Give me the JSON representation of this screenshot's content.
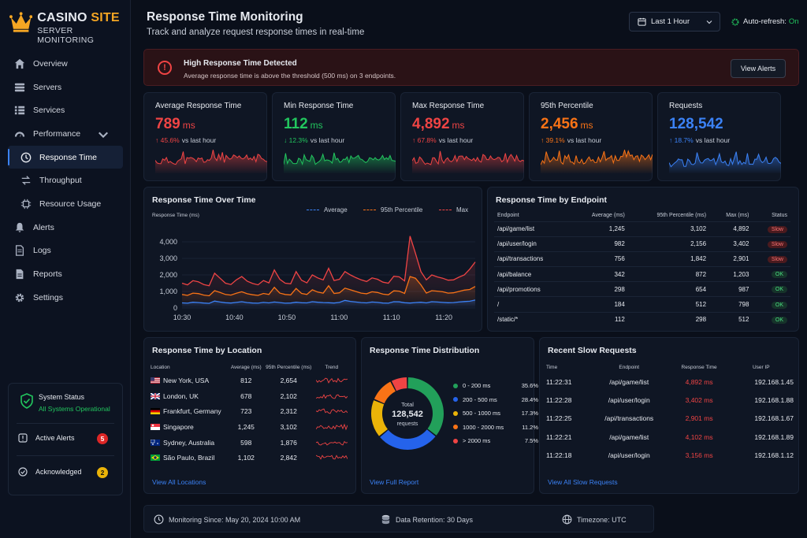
{
  "brand": {
    "name_a": "CASINO",
    "name_b": "SITE",
    "subtitle": "SERVER MONITORING"
  },
  "nav": [
    {
      "label": "Overview",
      "icon": "home-icon"
    },
    {
      "label": "Servers",
      "icon": "server-icon"
    },
    {
      "label": "Services",
      "icon": "list-icon"
    },
    {
      "label": "Performance",
      "icon": "speedometer-icon"
    },
    {
      "label": "Response Time",
      "icon": "clock-icon"
    },
    {
      "label": "Throughput",
      "icon": "swap-icon"
    },
    {
      "label": "Resource Usage",
      "icon": "cpu-icon"
    },
    {
      "label": "Alerts",
      "icon": "bell-icon"
    },
    {
      "label": "Logs",
      "icon": "file-icon"
    },
    {
      "label": "Reports",
      "icon": "report-icon"
    },
    {
      "label": "Settings",
      "icon": "gear-icon"
    }
  ],
  "system_status": {
    "title": "System Status",
    "state": "All Systems Operational",
    "active_alerts_label": "Active Alerts",
    "active_alerts": "5",
    "ack_label": "Acknowledged",
    "ack": "2"
  },
  "header": {
    "title": "Response Time Monitoring",
    "subtitle": "Track and analyze request response times in real-time",
    "range": "Last 1 Hour",
    "auto_label": "Auto-refresh:",
    "auto_value": "On"
  },
  "alert": {
    "title": "High Response Time Detected",
    "message": "Average response time is above the threshold (500 ms) on 3 endpoints.",
    "button": "View Alerts"
  },
  "stats": [
    {
      "label": "Average Response Time",
      "value": "789",
      "unit": "ms",
      "change": "↑ 45.6%",
      "note": "vs last hour",
      "color": "#ef4444"
    },
    {
      "label": "Min Response Time",
      "value": "112",
      "unit": "ms",
      "change": "↓ 12.3%",
      "note": "vs last hour",
      "color": "#22c55e"
    },
    {
      "label": "Max Response Time",
      "value": "4,892",
      "unit": "ms",
      "change": "↑ 67.8%",
      "note": "vs last hour",
      "color": "#ef4444"
    },
    {
      "label": "95th Percentile",
      "value": "2,456",
      "unit": "ms",
      "change": "↑ 39.1%",
      "note": "vs last hour",
      "color": "#f97316"
    },
    {
      "label": "Requests",
      "value": "128,542",
      "unit": "",
      "change": "↑ 18.7%",
      "note": "vs last hour",
      "color": "#3b82f6"
    }
  ],
  "chart_data": {
    "type": "line",
    "title": "Response Time Over Time",
    "ylabel": "Response Time (ms)",
    "ylim": [
      0,
      5000
    ],
    "yticks": [
      "0",
      "1,000",
      "2,000",
      "3,000",
      "4,000"
    ],
    "xticks": [
      "10:30",
      "10:40",
      "10:50",
      "11:00",
      "11:10",
      "11:20"
    ],
    "legend": "top-right",
    "series": [
      {
        "name": "Average",
        "color": "#3b82f6",
        "values": [
          310,
          290,
          350,
          330,
          300,
          280,
          420,
          360,
          320,
          300,
          340,
          380,
          330,
          300,
          290,
          340,
          310,
          360,
          330,
          290,
          300,
          350,
          320,
          310,
          380,
          350,
          330,
          320,
          300,
          340,
          460,
          400,
          360,
          330,
          310,
          360,
          340,
          300,
          290,
          380,
          370,
          320,
          300,
          330,
          350,
          310,
          380,
          360,
          340,
          320,
          330,
          360,
          390,
          410,
          480
        ]
      },
      {
        "name": "95th Percentile",
        "color": "#f97316",
        "values": [
          820,
          760,
          900,
          870,
          780,
          740,
          1050,
          940,
          820,
          780,
          890,
          980,
          860,
          800,
          760,
          880,
          820,
          1250,
          900,
          820,
          790,
          1180,
          880,
          820,
          1100,
          960,
          900,
          1350,
          880,
          920,
          1200,
          1100,
          1000,
          900,
          860,
          980,
          940,
          840,
          800,
          1040,
          1020,
          880,
          1900,
          1800,
          1400,
          900,
          1050,
          1020,
          980,
          900,
          920,
          1000,
          1080,
          1120,
          1300
        ]
      },
      {
        "name": "Max",
        "color": "#ef4444",
        "values": [
          1500,
          1400,
          1650,
          1580,
          1420,
          1350,
          2100,
          1800,
          1500,
          1420,
          1700,
          1900,
          1620,
          1480,
          1400,
          1660,
          1520,
          2300,
          1740,
          1500,
          1460,
          2200,
          1680,
          1520,
          2000,
          1820,
          1700,
          2400,
          1660,
          1740,
          2200,
          2000,
          1840,
          1700,
          1600,
          1820,
          1740,
          1560,
          1500,
          1920,
          1880,
          1640,
          4350,
          3300,
          2200,
          1700,
          2000,
          1880,
          1800,
          1680,
          1700,
          1860,
          2000,
          2350,
          2780
        ]
      }
    ]
  },
  "endpoints": {
    "title": "Response Time by Endpoint",
    "headers": [
      "Endpoint",
      "Average (ms)",
      "95th Percentile (ms)",
      "Max (ms)",
      "Status"
    ],
    "rows": [
      [
        "/api/game/list",
        "1,245",
        "3,102",
        "4,892",
        "Slow"
      ],
      [
        "/api/user/login",
        "982",
        "2,156",
        "3,402",
        "Slow"
      ],
      [
        "/api/transactions",
        "756",
        "1,842",
        "2,901",
        "Slow"
      ],
      [
        "/api/balance",
        "342",
        "872",
        "1,203",
        "OK"
      ],
      [
        "/api/promotions",
        "298",
        "654",
        "987",
        "OK"
      ],
      [
        "/",
        "184",
        "512",
        "798",
        "OK"
      ],
      [
        "/static/*",
        "112",
        "298",
        "512",
        "OK"
      ]
    ]
  },
  "locations": {
    "title": "Response Time by Location",
    "headers": [
      "Location",
      "Average (ms)",
      "95th Percentile (ms)",
      "Trend"
    ],
    "rows": [
      {
        "name": "New York, USA",
        "avg": "812",
        "p95": "2,654",
        "flag": "us"
      },
      {
        "name": "London, UK",
        "avg": "678",
        "p95": "2,102",
        "flag": "uk"
      },
      {
        "name": "Frankfurt, Germany",
        "avg": "723",
        "p95": "2,312",
        "flag": "de"
      },
      {
        "name": "Singapore",
        "avg": "1,245",
        "p95": "3,102",
        "flag": "sg"
      },
      {
        "name": "Sydney, Australia",
        "avg": "598",
        "p95": "1,876",
        "flag": "au"
      },
      {
        "name": "São Paulo, Brazil",
        "avg": "1,102",
        "p95": "2,842",
        "flag": "br"
      }
    ],
    "link": "View All Locations"
  },
  "distribution": {
    "title": "Response Time Distribution",
    "center_label": "Total",
    "center_value": "128,542",
    "center_unit": "requests",
    "slices": [
      {
        "label": "0 - 200 ms",
        "pct": "35.6%",
        "value": 35.6,
        "color": "#22a05a"
      },
      {
        "label": "200 - 500 ms",
        "pct": "28.4%",
        "value": 28.4,
        "color": "#2563eb"
      },
      {
        "label": "500 - 1000 ms",
        "pct": "17.3%",
        "value": 17.3,
        "color": "#eab308"
      },
      {
        "label": "1000 - 2000 ms",
        "pct": "11.2%",
        "value": 11.2,
        "color": "#f97316"
      },
      {
        "label": "> 2000 ms",
        "pct": "7.5%",
        "value": 7.5,
        "color": "#ef4444"
      }
    ],
    "link": "View Full Report"
  },
  "slow_requests": {
    "title": "Recent Slow Requests",
    "headers": [
      "Time",
      "Endpoint",
      "Response Time",
      "User IP"
    ],
    "rows": [
      [
        "11:22:31",
        "/api/game/list",
        "4,892 ms",
        "192.168.1.45"
      ],
      [
        "11:22:28",
        "/api/user/login",
        "3,402 ms",
        "192.168.1.88"
      ],
      [
        "11:22:25",
        "/api/transactions",
        "2,901 ms",
        "192.168.1.67"
      ],
      [
        "11:22:21",
        "/api/game/list",
        "4,102 ms",
        "192.168.1.89"
      ],
      [
        "11:22:18",
        "/api/user/login",
        "3,156 ms",
        "192.168.1.12"
      ]
    ],
    "link": "View All Slow Requests"
  },
  "footer": {
    "monitoring": "Monitoring Since: May 20, 2024 10:00 AM",
    "retention": "Data Retention: 30 Days",
    "timezone": "Timezone: UTC"
  }
}
